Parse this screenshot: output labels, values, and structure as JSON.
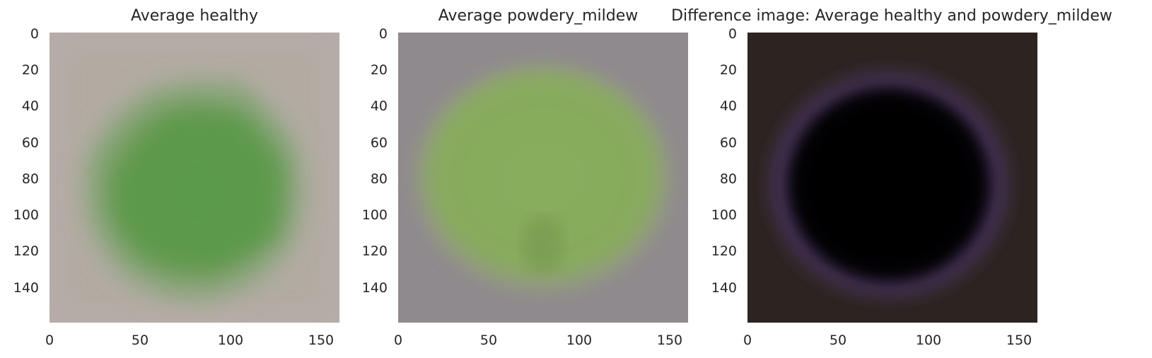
{
  "chart_data": [
    {
      "type": "heatmap",
      "title": "Average healthy",
      "xlim": [
        0,
        160
      ],
      "ylim": [
        160,
        0
      ],
      "xticks": [
        "0",
        "50",
        "100",
        "150"
      ],
      "yticks": [
        "0",
        "20",
        "40",
        "60",
        "80",
        "100",
        "120",
        "140"
      ],
      "colors": {
        "background": "#b7aca8",
        "leaf": "#5e9a4c",
        "leaf_edge": "#8aa57c"
      }
    },
    {
      "type": "heatmap",
      "title": "Average powdery_mildew",
      "xlim": [
        0,
        160
      ],
      "ylim": [
        160,
        0
      ],
      "xticks": [
        "0",
        "50",
        "100",
        "150"
      ],
      "yticks": [
        "0",
        "20",
        "40",
        "60",
        "80",
        "100",
        "120",
        "140"
      ],
      "colors": {
        "background": "#8f8a8d",
        "leaf": "#86aa5c",
        "leaf_edge": "#9aa27c"
      }
    },
    {
      "type": "heatmap",
      "title": "Difference image: Average healthy and powdery_mildew",
      "xlim": [
        0,
        160
      ],
      "ylim": [
        160,
        0
      ],
      "xticks": [
        "0",
        "50",
        "100",
        "150"
      ],
      "yticks": [
        "0",
        "20",
        "40",
        "60",
        "80",
        "100",
        "120",
        "140"
      ],
      "colors": {
        "background": "#2d2422",
        "leaf": "#050205",
        "leaf_edge": "#4a3560"
      }
    }
  ]
}
